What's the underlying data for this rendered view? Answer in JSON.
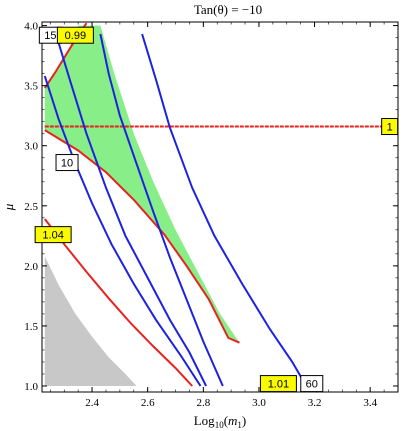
{
  "chart_data": {
    "type": "line",
    "title": "Tan(θ) = −10",
    "xlabel": "Log10(m1)",
    "ylabel": "μ",
    "xlim": [
      2.22,
      3.5
    ],
    "ylim": [
      0.95,
      4.03
    ],
    "x_ticks": [
      2.4,
      2.6,
      2.8,
      3.0,
      3.2,
      3.4
    ],
    "x_tick_labels": [
      "2.4",
      "2.6",
      "2.8",
      "3.0",
      "3.2",
      "3.4"
    ],
    "y_ticks": [
      1.0,
      1.5,
      2.0,
      2.5,
      3.0,
      3.5,
      4.0
    ],
    "y_tick_labels": [
      "1.0",
      "1.5",
      "2.0",
      "2.5",
      "3.0",
      "3.5",
      "4.0"
    ],
    "grid": false,
    "colors": {
      "red": "#e8231f",
      "blue": "#1e22e0",
      "green_region": "#88ee88",
      "gray_region": "#c8c8c8",
      "label_yellow": "#fafa00"
    },
    "regions": [
      {
        "fill": "green",
        "boundary": [
          [
            2.35,
            4.0
          ],
          [
            2.43,
            4.0
          ],
          [
            2.48,
            3.6
          ],
          [
            2.55,
            3.1
          ],
          [
            2.62,
            2.7
          ],
          [
            2.7,
            2.3
          ],
          [
            2.78,
            1.95
          ],
          [
            2.86,
            1.6
          ],
          [
            2.93,
            1.36
          ],
          [
            2.89,
            1.4
          ],
          [
            2.82,
            1.72
          ],
          [
            2.74,
            2.0
          ],
          [
            2.66,
            2.26
          ],
          [
            2.55,
            2.55
          ],
          [
            2.45,
            2.78
          ],
          [
            2.35,
            2.96
          ],
          [
            2.23,
            3.13
          ],
          [
            2.23,
            3.48
          ],
          [
            2.28,
            3.64
          ],
          [
            2.32,
            3.82
          ]
        ]
      },
      {
        "fill": "gray",
        "boundary": [
          [
            2.23,
            2.08
          ],
          [
            2.28,
            1.84
          ],
          [
            2.34,
            1.6
          ],
          [
            2.4,
            1.41
          ],
          [
            2.46,
            1.24
          ],
          [
            2.52,
            1.1
          ],
          [
            2.56,
            1.0
          ],
          [
            2.23,
            1.0
          ]
        ]
      }
    ],
    "series": [
      {
        "label": "1",
        "color": "red",
        "dashed": true,
        "points": [
          [
            2.23,
            3.16
          ],
          [
            3.48,
            3.16
          ]
        ]
      },
      {
        "label": "0.99",
        "color": "red",
        "points": [
          [
            2.23,
            3.48
          ],
          [
            2.27,
            3.62
          ],
          [
            2.31,
            3.77
          ],
          [
            2.35,
            3.92
          ],
          [
            2.38,
            4.02
          ]
        ]
      },
      {
        "label": "10",
        "color": "red",
        "points": [
          [
            2.23,
            3.13
          ],
          [
            2.35,
            2.96
          ],
          [
            2.45,
            2.78
          ],
          [
            2.55,
            2.55
          ],
          [
            2.66,
            2.26
          ],
          [
            2.74,
            2.0
          ],
          [
            2.82,
            1.72
          ],
          [
            2.89,
            1.4
          ],
          [
            2.93,
            1.36
          ]
        ]
      },
      {
        "label": "1.04",
        "color": "red",
        "points": [
          [
            2.23,
            2.39
          ],
          [
            2.3,
            2.18
          ],
          [
            2.38,
            1.95
          ],
          [
            2.46,
            1.73
          ],
          [
            2.54,
            1.52
          ],
          [
            2.62,
            1.33
          ],
          [
            2.7,
            1.15
          ],
          [
            2.76,
            1.0
          ]
        ]
      },
      {
        "label": "1.01",
        "color": "red",
        "points": [
          [
            2.23,
            3.0
          ]
        ]
      },
      {
        "label": "15",
        "color": "blue",
        "points": [
          [
            2.27,
            3.93
          ],
          [
            2.32,
            3.55
          ],
          [
            2.38,
            3.1
          ],
          [
            2.45,
            2.65
          ],
          [
            2.52,
            2.25
          ],
          [
            2.6,
            1.9
          ],
          [
            2.68,
            1.55
          ],
          [
            2.75,
            1.28
          ],
          [
            2.81,
            1.0
          ]
        ]
      },
      {
        "label": "",
        "color": "blue",
        "points": [
          [
            2.23,
            3.58
          ],
          [
            2.28,
            3.22
          ],
          [
            2.34,
            2.85
          ],
          [
            2.4,
            2.52
          ],
          [
            2.47,
            2.18
          ],
          [
            2.55,
            1.85
          ],
          [
            2.63,
            1.55
          ],
          [
            2.72,
            1.25
          ],
          [
            2.79,
            1.0
          ]
        ]
      },
      {
        "label": "60",
        "color": "blue",
        "points": [
          [
            2.58,
            3.93
          ],
          [
            2.63,
            3.55
          ],
          [
            2.68,
            3.15
          ],
          [
            2.76,
            2.65
          ],
          [
            2.84,
            2.25
          ],
          [
            2.94,
            1.85
          ],
          [
            3.04,
            1.47
          ],
          [
            3.12,
            1.2
          ],
          [
            3.17,
            1.0
          ]
        ]
      },
      {
        "label": "",
        "color": "blue",
        "points": [
          [
            2.43,
            3.93
          ],
          [
            2.46,
            3.6
          ],
          [
            2.5,
            3.25
          ],
          [
            2.56,
            2.85
          ],
          [
            2.62,
            2.45
          ],
          [
            2.68,
            2.07
          ],
          [
            2.74,
            1.72
          ],
          [
            2.8,
            1.37
          ],
          [
            2.87,
            1.0
          ]
        ]
      }
    ],
    "annotations": [
      {
        "text": "15",
        "x": 2.25,
        "y": 3.92,
        "box": "white"
      },
      {
        "text": "0.99",
        "x": 2.34,
        "y": 3.92,
        "box": "yellow"
      },
      {
        "text": "10",
        "x": 2.31,
        "y": 2.86,
        "box": "white"
      },
      {
        "text": "1.04",
        "x": 2.26,
        "y": 2.26,
        "box": "yellow"
      },
      {
        "text": "1",
        "x": 3.47,
        "y": 3.16,
        "box": "yellow"
      },
      {
        "text": "1.01",
        "x": 3.07,
        "y": 1.02,
        "box": "yellow"
      },
      {
        "text": "60",
        "x": 3.19,
        "y": 1.02,
        "box": "white"
      }
    ]
  }
}
